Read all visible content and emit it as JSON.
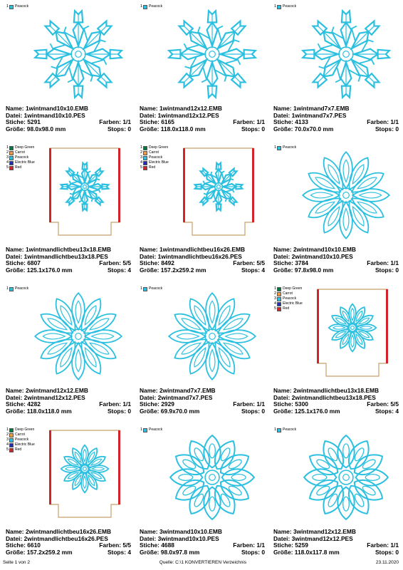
{
  "colors": {
    "peacock": "#2cc0e0",
    "deep_green": "#007a3d",
    "carrot": "#f19940",
    "electric_blue": "#1f2fb8",
    "red": "#d2232a",
    "hoop": "#c4a06a"
  },
  "labels": {
    "name": "Name:",
    "datei": "Datei:",
    "stiche": "Stiche:",
    "groesse": "Größe:",
    "farben": "Farben:",
    "stops": "Stops:"
  },
  "designs": [
    {
      "name": "1wintmand10x10.EMB",
      "file": "1wintmand10x10.PES",
      "stitches": "5291",
      "colors": "1/1",
      "size": "98.0x98.0 mm",
      "stops": "0",
      "type": "flake",
      "style": 1,
      "legend": [
        {
          "n": "1",
          "label": "Peacock",
          "color": "#2cc0e0"
        }
      ]
    },
    {
      "name": "1wintmand12x12.EMB",
      "file": "1wintmand12x12.PES",
      "stitches": "6165",
      "colors": "1/1",
      "size": "118.0x118.0 mm",
      "stops": "0",
      "type": "flake",
      "style": 1,
      "legend": [
        {
          "n": "1",
          "label": "Peacock",
          "color": "#2cc0e0"
        }
      ]
    },
    {
      "name": "1wintmand7x7.EMB",
      "file": "1wintmand7x7.PES",
      "stitches": "4133",
      "colors": "1/1",
      "size": "70.0x70.0 mm",
      "stops": "0",
      "type": "flake",
      "style": 1,
      "legend": [
        {
          "n": "1",
          "label": "Peacock",
          "color": "#2cc0e0"
        }
      ]
    },
    {
      "name": "1wintmandlichtbeu13x18.EMB",
      "file": "1wintmandlichtbeu13x18.PES",
      "stitches": "6807",
      "colors": "5/5",
      "size": "125.1x176.0 mm",
      "stops": "4",
      "type": "sleeve",
      "style": 1,
      "legend": [
        {
          "n": "1",
          "label": "Deep Green",
          "color": "#007a3d"
        },
        {
          "n": "2",
          "label": "Carrot",
          "color": "#f19940"
        },
        {
          "n": "3",
          "label": "Peacock",
          "color": "#2cc0e0"
        },
        {
          "n": "4",
          "label": "Electric Blue",
          "color": "#1f2fb8"
        },
        {
          "n": "5",
          "label": "Red",
          "color": "#d2232a"
        }
      ]
    },
    {
      "name": "1wintmandlichtbeu16x26.EMB",
      "file": "1wintmandlichtbeu16x26.PES",
      "stitches": "8492",
      "colors": "5/5",
      "size": "157.2x259.2 mm",
      "stops": "4",
      "type": "sleeve",
      "style": 1,
      "legend": [
        {
          "n": "1",
          "label": "Deep Green",
          "color": "#007a3d"
        },
        {
          "n": "2",
          "label": "Carrot",
          "color": "#f19940"
        },
        {
          "n": "3",
          "label": "Peacock",
          "color": "#2cc0e0"
        },
        {
          "n": "4",
          "label": "Electric Blue",
          "color": "#1f2fb8"
        },
        {
          "n": "5",
          "label": "Red",
          "color": "#d2232a"
        }
      ]
    },
    {
      "name": "2wintmand10x10.EMB",
      "file": "2wintmand10x10.PES",
      "stitches": "3784",
      "colors": "1/1",
      "size": "97.8x98.0 mm",
      "stops": "0",
      "type": "flake",
      "style": 2,
      "legend": [
        {
          "n": "1",
          "label": "Peacock",
          "color": "#2cc0e0"
        }
      ]
    },
    {
      "name": "2wintmand12x12.EMB",
      "file": "2wintmand12x12.PES",
      "stitches": "4282",
      "colors": "1/1",
      "size": "118.0x118.0 mm",
      "stops": "0",
      "type": "flake",
      "style": 2,
      "legend": [
        {
          "n": "1",
          "label": "Peacock",
          "color": "#2cc0e0"
        }
      ]
    },
    {
      "name": "2wintmand7x7.EMB",
      "file": "2wintmand7x7.PES",
      "stitches": "2929",
      "colors": "1/1",
      "size": "69.9x70.0 mm",
      "stops": "0",
      "type": "flake",
      "style": 2,
      "legend": [
        {
          "n": "1",
          "label": "Peacock",
          "color": "#2cc0e0"
        }
      ]
    },
    {
      "name": "2wintmandlichtbeu13x18.EMB",
      "file": "2wintmandlichtbeu13x18.PES",
      "stitches": "5300",
      "colors": "5/5",
      "size": "125.1x176.0 mm",
      "stops": "4",
      "type": "sleeve",
      "style": 2,
      "legend": [
        {
          "n": "1",
          "label": "Deep Green",
          "color": "#007a3d"
        },
        {
          "n": "2",
          "label": "Carrot",
          "color": "#f19940"
        },
        {
          "n": "3",
          "label": "Peacock",
          "color": "#2cc0e0"
        },
        {
          "n": "4",
          "label": "Electric Blue",
          "color": "#1f2fb8"
        },
        {
          "n": "5",
          "label": "Red",
          "color": "#d2232a"
        }
      ]
    },
    {
      "name": "2wintmandlichtbeu16x26.EMB",
      "file": "2wintmandlichtbeu16x26.PES",
      "stitches": "6610",
      "colors": "5/5",
      "size": "157.2x259.2 mm",
      "stops": "4",
      "type": "sleeve",
      "style": 2,
      "legend": [
        {
          "n": "1",
          "label": "Deep Green",
          "color": "#007a3d"
        },
        {
          "n": "2",
          "label": "Carrot",
          "color": "#f19940"
        },
        {
          "n": "3",
          "label": "Peacock",
          "color": "#2cc0e0"
        },
        {
          "n": "4",
          "label": "Electric Blue",
          "color": "#1f2fb8"
        },
        {
          "n": "5",
          "label": "Red",
          "color": "#d2232a"
        }
      ]
    },
    {
      "name": "3wintmand10x10.EMB",
      "file": "3wintmand10x10.PES",
      "stitches": "4688",
      "colors": "1/1",
      "size": "98.0x97.8 mm",
      "stops": "0",
      "type": "flake",
      "style": 3,
      "legend": [
        {
          "n": "1",
          "label": "Peacock",
          "color": "#2cc0e0"
        }
      ]
    },
    {
      "name": "3wintmand12x12.EMB",
      "file": "3wintmand12x12.PES",
      "stitches": "5259",
      "colors": "1/1",
      "size": "118.0x117.8 mm",
      "stops": "0",
      "type": "flake",
      "style": 3,
      "legend": [
        {
          "n": "1",
          "label": "Peacock",
          "color": "#2cc0e0"
        }
      ]
    }
  ],
  "footer": {
    "page": "Seite 1 von 2",
    "source": "Quelle: C:\\1 KONVERTIEREN Verzeichnis",
    "date": "23.11.2020"
  }
}
